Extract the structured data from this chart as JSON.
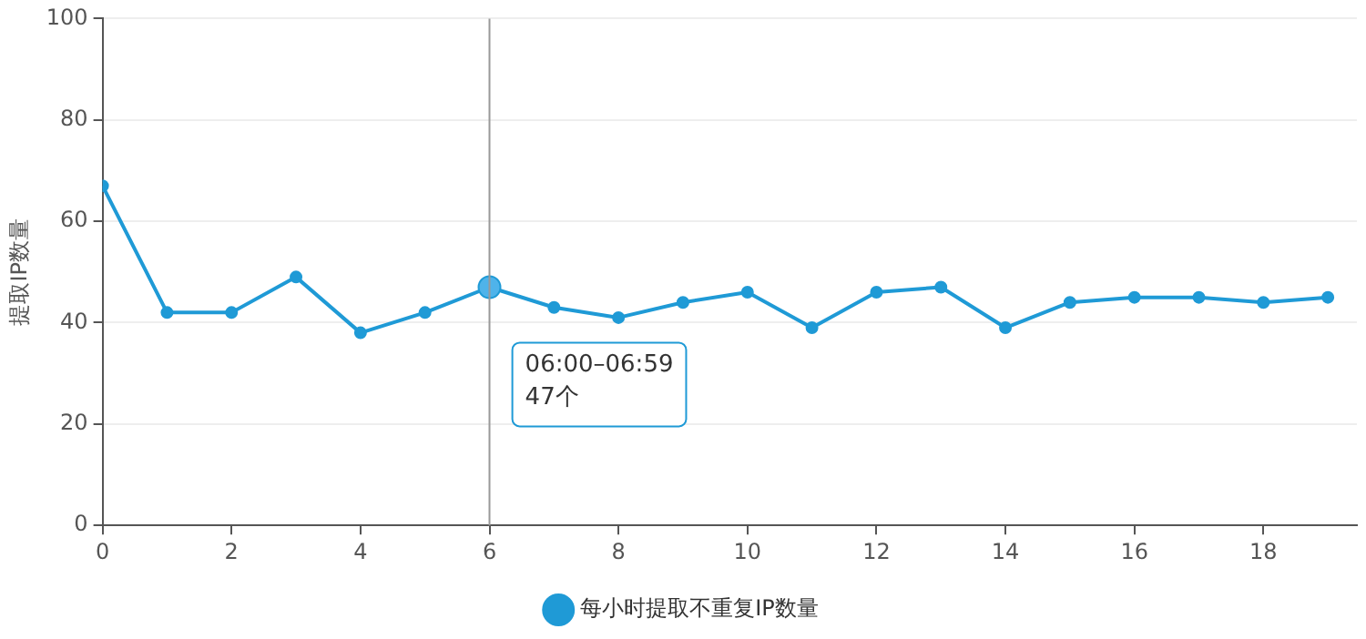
{
  "chart_data": {
    "type": "line",
    "ylabel": "提取IP数量",
    "x": [
      0,
      1,
      2,
      3,
      4,
      5,
      6,
      7,
      8,
      9,
      10,
      11,
      12,
      13,
      14,
      15,
      16,
      17,
      18,
      19
    ],
    "series": [
      {
        "name": "每小时提取不重复IP数量",
        "color": "#1f9ad6",
        "values": [
          67,
          42,
          42,
          49,
          38,
          42,
          47,
          43,
          41,
          44,
          46,
          39,
          46,
          47,
          39,
          44,
          45,
          45,
          44,
          45
        ]
      }
    ],
    "xlim": [
      0,
      19.45
    ],
    "xticks": [
      0,
      2,
      4,
      6,
      8,
      10,
      12,
      14,
      16,
      18
    ],
    "ylim": [
      0,
      100
    ],
    "yticks": [
      0,
      20,
      40,
      60,
      80,
      100
    ],
    "grid": "y",
    "legend": "bottom",
    "marker": "circle",
    "line_style": "solid",
    "ref_lines": [
      {
        "axis": "x",
        "value": 6,
        "color": "#999999"
      }
    ],
    "annotations": [
      "06:00–06:59\n47个"
    ]
  }
}
